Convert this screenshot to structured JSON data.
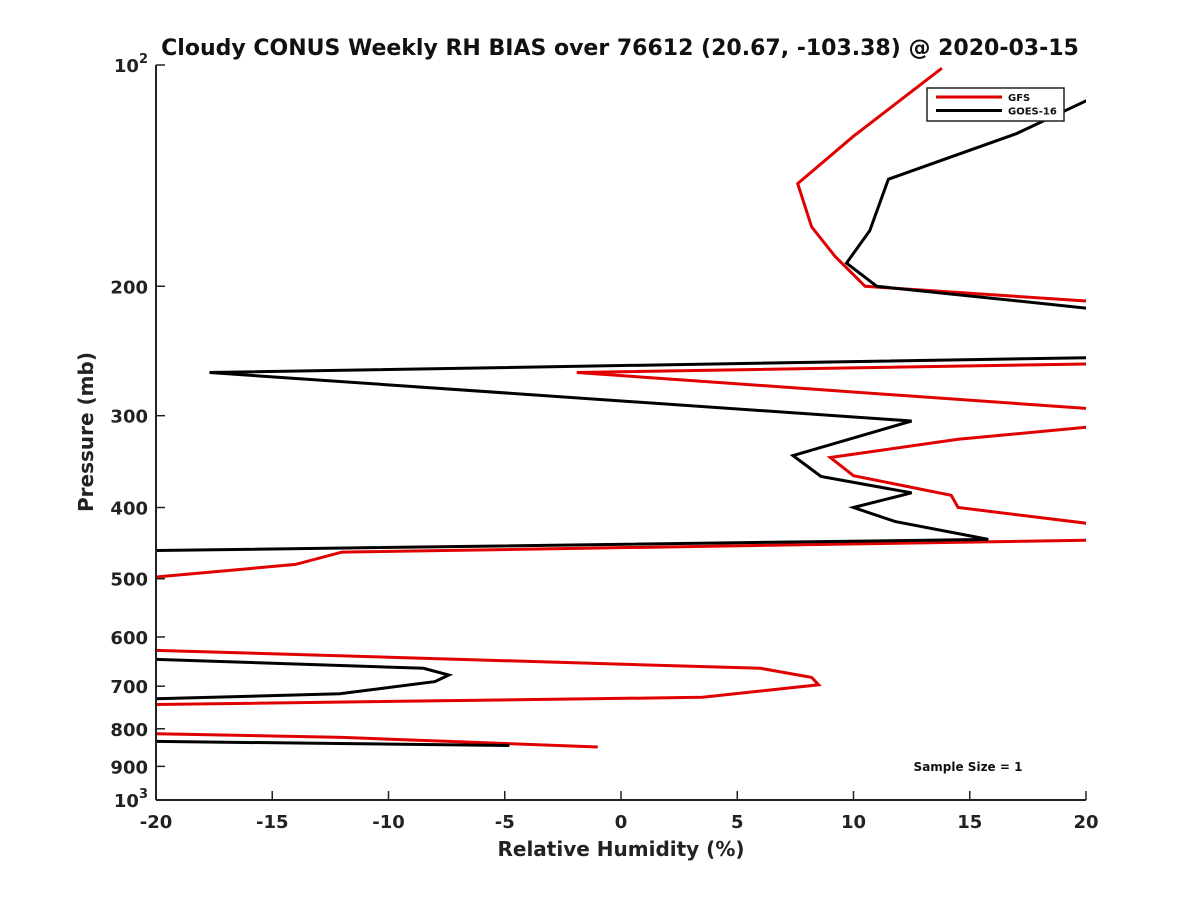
{
  "chart_data": {
    "type": "line",
    "title": "Cloudy CONUS Weekly RH BIAS over 76612 (20.67, -103.38) @ 2020-03-15",
    "xlabel": "Relative Humidity (%)",
    "ylabel": "Pressure (mb)",
    "xlim": [
      -20,
      20
    ],
    "ylim": [
      100,
      1000
    ],
    "yscale": "log",
    "y_reversed": true,
    "x_ticks": [
      -20,
      -15,
      -10,
      -5,
      0,
      5,
      10,
      15,
      20
    ],
    "x_tick_labels": [
      "-20",
      "-15",
      "-10",
      "-5",
      "0",
      "5",
      "10",
      "15",
      "20"
    ],
    "y_ticks": [
      100,
      200,
      300,
      400,
      500,
      600,
      700,
      800,
      900,
      1000
    ],
    "y_tick_labels": [
      {
        "base": "10",
        "exp": "2"
      },
      {
        "base": "200",
        "exp": ""
      },
      {
        "base": "300",
        "exp": ""
      },
      {
        "base": "400",
        "exp": ""
      },
      {
        "base": "500",
        "exp": ""
      },
      {
        "base": "600",
        "exp": ""
      },
      {
        "base": "700",
        "exp": ""
      },
      {
        "base": "800",
        "exp": ""
      },
      {
        "base": "900",
        "exp": ""
      },
      {
        "base": "10",
        "exp": "3"
      }
    ],
    "grid": false,
    "legend_position": "top-right",
    "annotation": "Sample Size = 1",
    "series": [
      {
        "name": "GFS",
        "color": "#e00000",
        "x": [
          13.8,
          10,
          7.6,
          8.2,
          9.2,
          10.5,
          20.5,
          null,
          20.5,
          -1.9,
          20.5,
          null,
          20.5,
          14.5,
          9,
          10,
          14.2,
          14.5,
          20.5,
          null,
          20.5,
          -12,
          -14,
          -20.5,
          null,
          -20.5,
          6,
          8.2,
          8.5,
          3.5,
          -20.5,
          null,
          -20.5,
          -12,
          -1
        ],
        "y": [
          101,
          125,
          145,
          166,
          182,
          200,
          210,
          null,
          255,
          262,
          294,
          null,
          310,
          323,
          342,
          362,
          385,
          400,
          422,
          null,
          443,
          460,
          478,
          499,
          null,
          625,
          662,
          681,
          697,
          725,
          742,
          null,
          812,
          822,
          847
        ]
      },
      {
        "name": "GOES-16",
        "color": "#000000",
        "x": [
          20.5,
          17,
          11.5,
          10.7,
          9.7,
          11,
          20.5,
          null,
          20.5,
          -17.7,
          12.5,
          7.4,
          8.6,
          12.5,
          10,
          11.8,
          15.8,
          -20.5,
          null,
          -20.5,
          -8.5,
          -7.4,
          -8,
          -12.1,
          -20.5,
          null,
          -20.5,
          -4.8
        ],
        "y": [
          110,
          124,
          143,
          168,
          186,
          200,
          215,
          null,
          250,
          262,
          305,
          340,
          363,
          382,
          400,
          418,
          442,
          458,
          null,
          643,
          662,
          676,
          690,
          717,
          729,
          null,
          832,
          843
        ]
      }
    ]
  }
}
